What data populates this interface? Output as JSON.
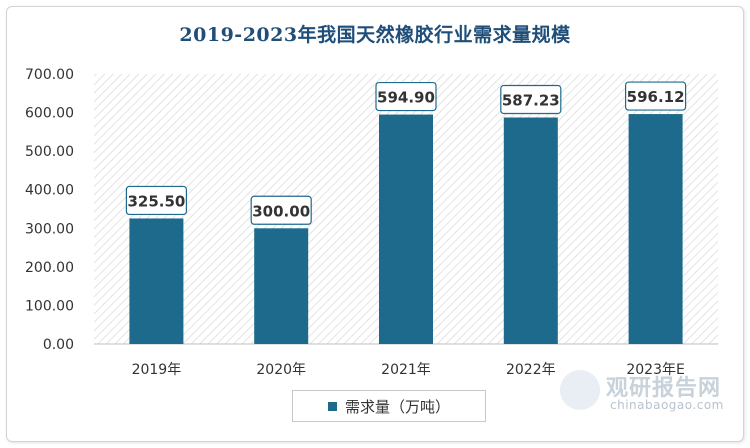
{
  "chart_data": {
    "type": "bar",
    "title": "2019-2023年我国天然橡胶行业需求量规模",
    "categories": [
      "2019年",
      "2020年",
      "2021年",
      "2022年",
      "2023年E"
    ],
    "series": [
      {
        "name": "需求量（万吨）",
        "values": [
          325.5,
          300.0,
          594.9,
          587.23,
          596.12
        ],
        "value_labels": [
          "325.50",
          "300.00",
          "594.90",
          "587.23",
          "596.12"
        ]
      }
    ],
    "y_ticks": [
      "0.00",
      "100.00",
      "200.00",
      "300.00",
      "400.00",
      "500.00",
      "600.00",
      "700.00"
    ],
    "ylim": [
      0,
      700
    ],
    "grid": false,
    "legend_position": "bottom",
    "colors": {
      "bar": "#1e6a8c",
      "title": "#1f4e79",
      "label_border": "#1e6a8c"
    }
  },
  "watermark": {
    "brand_cn": "观研报告网",
    "brand_en": "chinabaogao.com"
  }
}
